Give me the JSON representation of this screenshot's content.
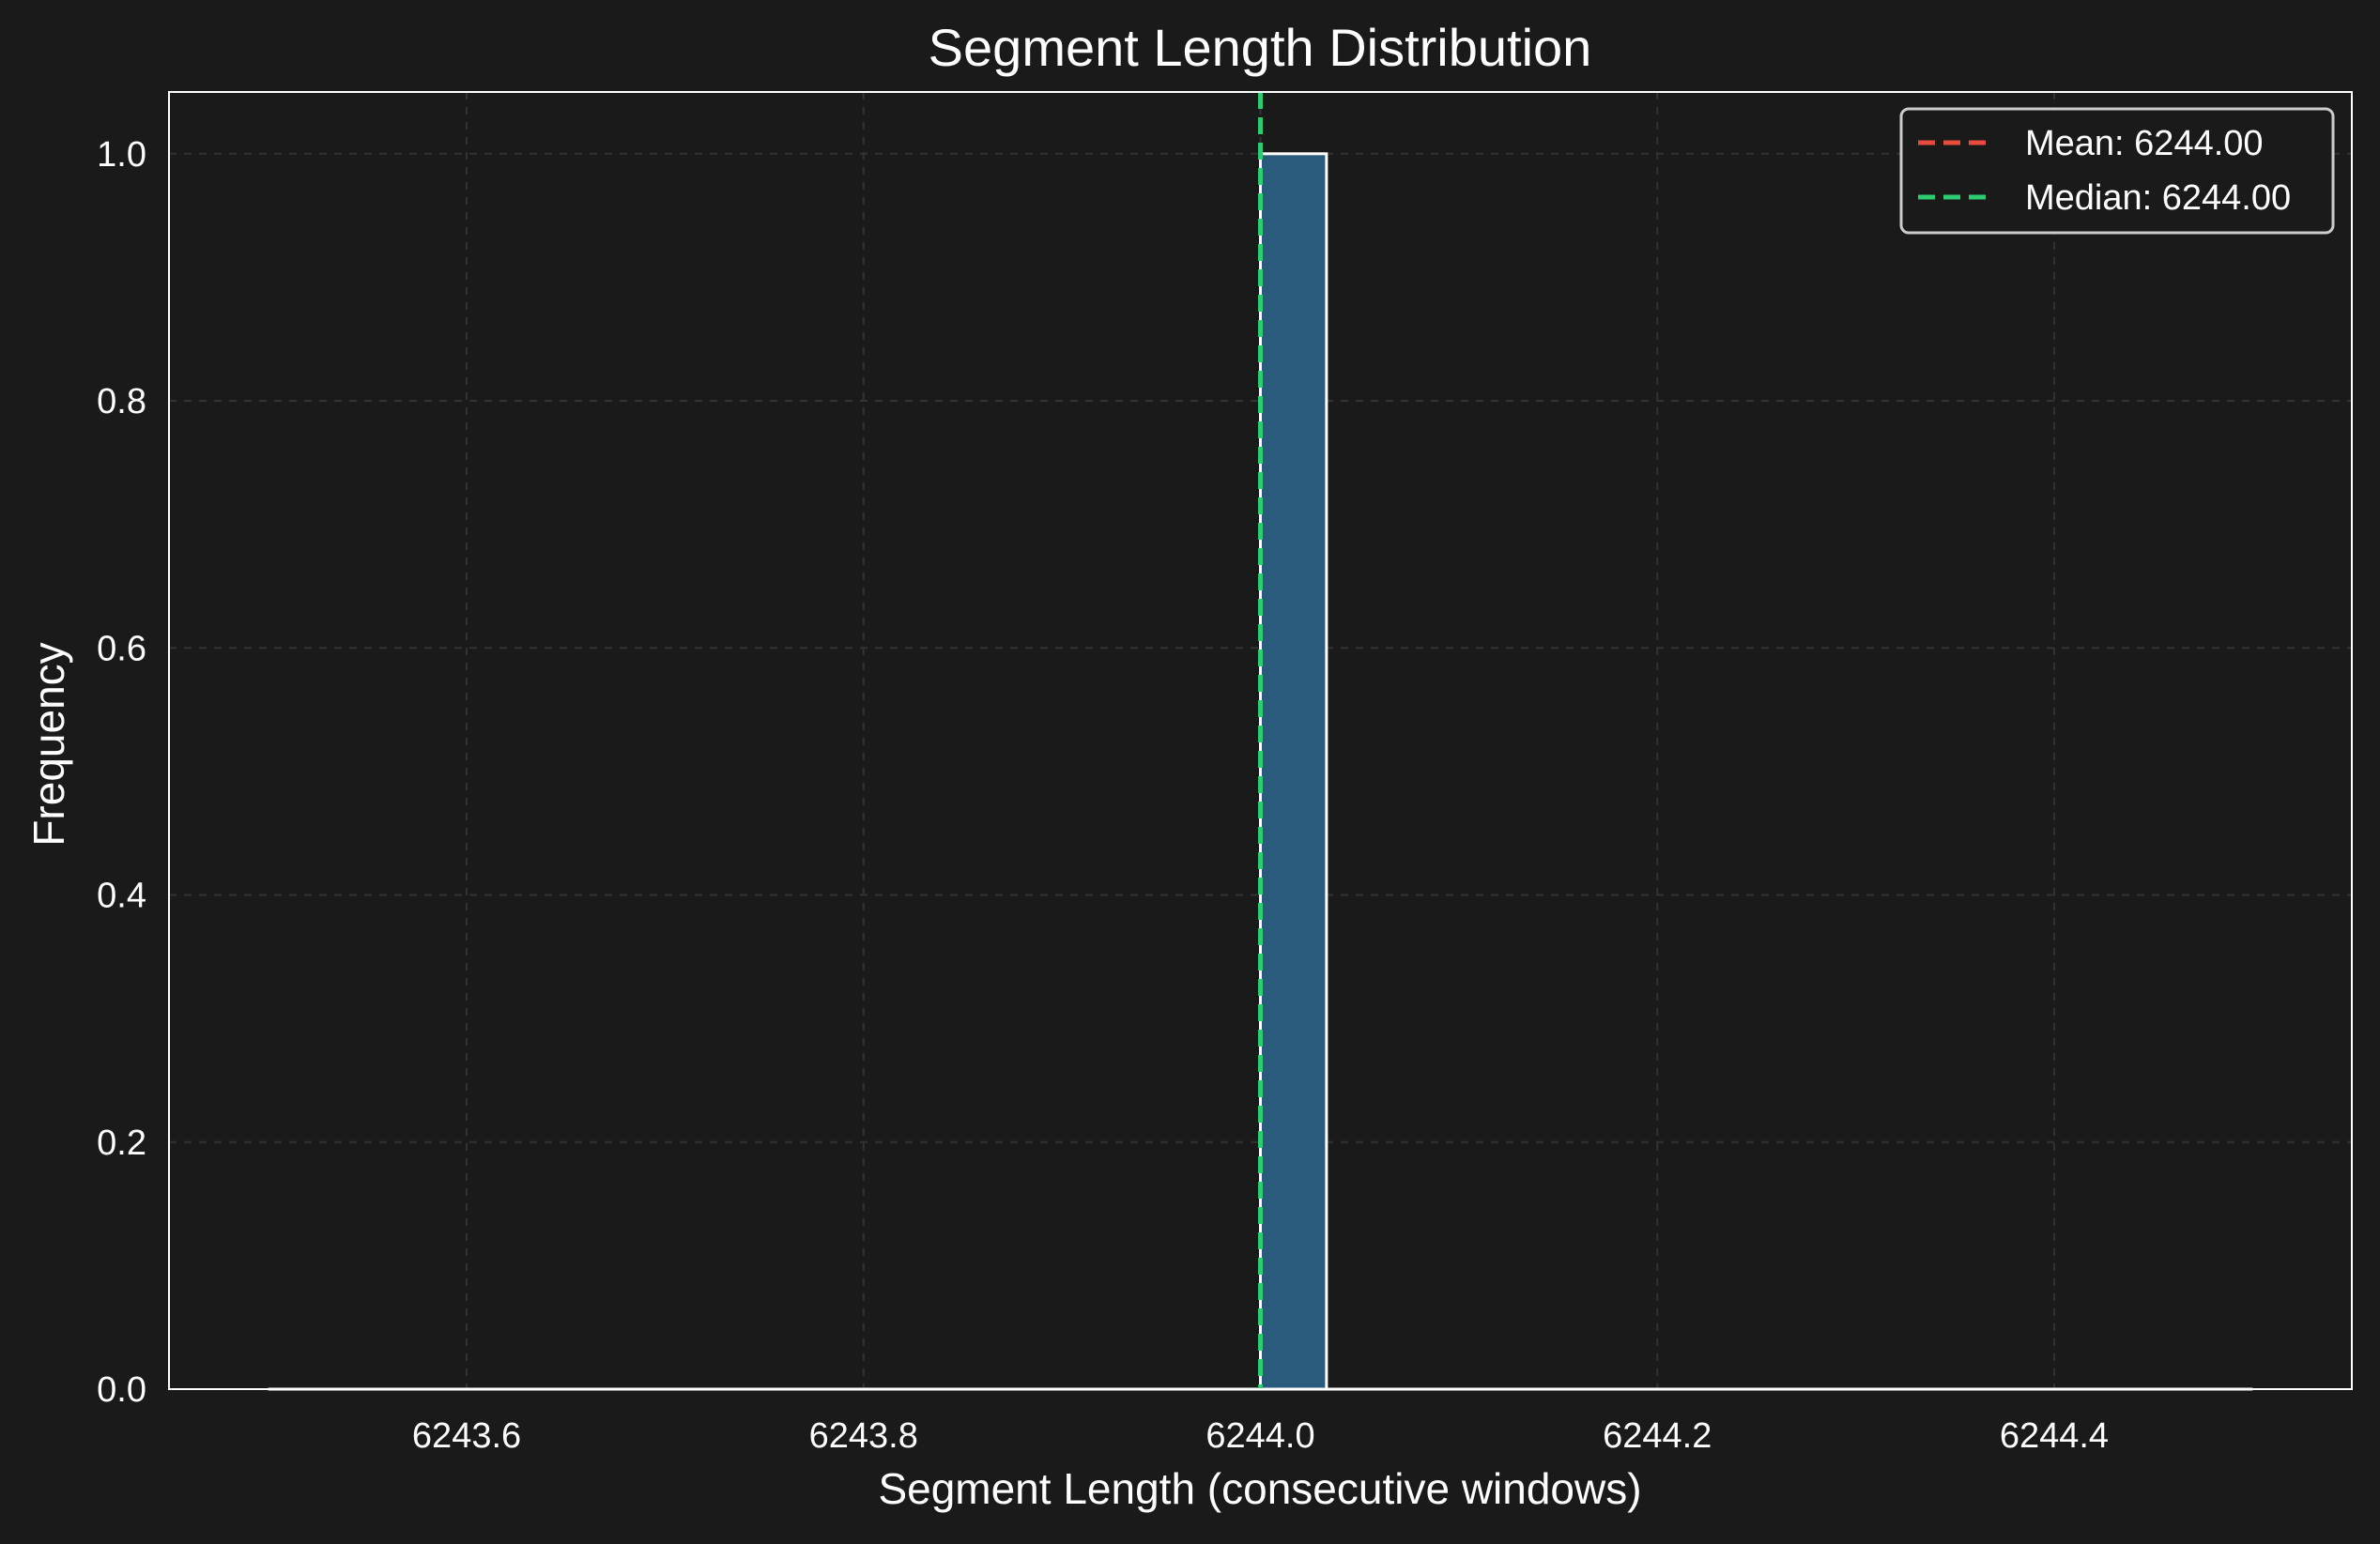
{
  "chart_data": {
    "type": "bar",
    "title": "Segment Length Distribution",
    "xlabel": "Segment Length (consecutive windows)",
    "ylabel": "Frequency",
    "xlim": [
      6243.45,
      6244.55
    ],
    "ylim": [
      0.0,
      1.05
    ],
    "xticks": [
      6243.6,
      6243.8,
      6244.0,
      6244.2,
      6244.4
    ],
    "xtick_labels": [
      "6243.6",
      "6243.8",
      "6244.0",
      "6244.2",
      "6244.4"
    ],
    "yticks": [
      0.0,
      0.2,
      0.4,
      0.6,
      0.8,
      1.0
    ],
    "ytick_labels": [
      "0.0",
      "0.2",
      "0.4",
      "0.6",
      "0.8",
      "1.0"
    ],
    "bins": {
      "start": 6243.5,
      "end": 6244.5,
      "count": 30
    },
    "bars": [
      {
        "x0": 6244.0,
        "x1": 6244.0333,
        "value": 1
      }
    ],
    "reference_lines": [
      {
        "label": "Mean: 6244.00",
        "x": 6244.0,
        "color": "#e74c3c",
        "style": "dashed"
      },
      {
        "label": "Median: 6244.00",
        "x": 6244.0,
        "color": "#2ecc71",
        "style": "dashed"
      }
    ],
    "legend": {
      "position": "top-right",
      "entries": [
        "Mean: 6244.00",
        "Median: 6244.00"
      ]
    },
    "grid": true,
    "colors": {
      "background": "#1a1a1a",
      "bar_fill": "#2a5a7c",
      "bar_edge": "#ffffff",
      "grid": "#333333",
      "text": "#ffffff"
    }
  }
}
